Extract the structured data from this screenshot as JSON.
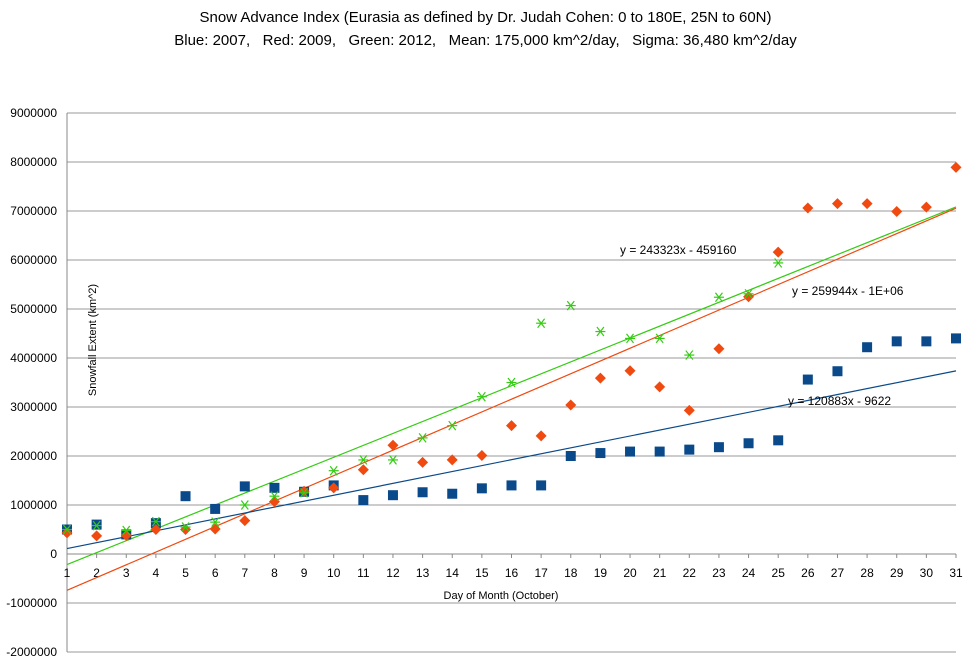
{
  "chart_data": {
    "type": "scatter",
    "title": "Snow Advance Index (Eurasia as defined by Dr. Judah Cohen: 0 to 180E, 25N to 60N)",
    "subtitle": "Blue: 2007,   Red: 2009,   Green: 2012,   Mean: 175,000 km^2/day,   Sigma: 36,480 km^2/day",
    "xlabel": "Day of Month (October)",
    "ylabel": "Snowfall Extent (km^2)",
    "xlim": [
      1,
      31
    ],
    "ylim": [
      -2000000,
      9000000
    ],
    "yticks": [
      "9000000",
      "8000000",
      "7000000",
      "6000000",
      "5000000",
      "4000000",
      "3000000",
      "2000000",
      "1000000",
      "0",
      "-1000000",
      "-2000000"
    ],
    "xticks": [
      "1",
      "2",
      "3",
      "4",
      "5",
      "6",
      "7",
      "8",
      "9",
      "10",
      "11",
      "12",
      "13",
      "14",
      "15",
      "16",
      "17",
      "18",
      "19",
      "20",
      "21",
      "22",
      "23",
      "24",
      "25",
      "26",
      "27",
      "28",
      "29",
      "30",
      "31"
    ],
    "grid": "horizontal",
    "x": [
      1,
      2,
      3,
      4,
      5,
      6,
      7,
      8,
      9,
      10,
      11,
      12,
      13,
      14,
      15,
      16,
      17,
      18,
      19,
      20,
      21,
      22,
      23,
      24,
      25,
      26,
      27,
      28,
      29,
      30,
      31
    ],
    "series": [
      {
        "color": "#0a4a8a",
        "marker": "square",
        "values": [
          500000,
          600000,
          400000,
          630000,
          1180000,
          920000,
          1380000,
          1350000,
          1270000,
          1400000,
          1100000,
          1200000,
          1260000,
          1230000,
          1340000,
          1400000,
          1400000,
          2000000,
          2060000,
          2090000,
          2090000,
          2130000,
          2180000,
          2260000,
          2320000,
          3560000,
          3730000,
          4220000,
          4340000,
          4340000,
          4400000
        ]
      },
      {
        "color": "#f04a10",
        "marker": "diamond",
        "values": [
          430000,
          370000,
          380000,
          500000,
          500000,
          510000,
          680000,
          1070000,
          1280000,
          1350000,
          1720000,
          2220000,
          1870000,
          1920000,
          2010000,
          2620000,
          2410000,
          3040000,
          3590000,
          3740000,
          3410000,
          2930000,
          4190000,
          5250000,
          6160000,
          7060000,
          7150000,
          7150000,
          6990000,
          7080000,
          7890000
        ]
      },
      {
        "color": "#33cc11",
        "marker": "star",
        "values": [
          500000,
          580000,
          480000,
          660000,
          550000,
          650000,
          1000000,
          1180000,
          1250000,
          1700000,
          1920000,
          1920000,
          2370000,
          2620000,
          3210000,
          3500000,
          4710000,
          5070000,
          4540000,
          4400000,
          4400000,
          4060000,
          5240000,
          5310000,
          5940000,
          null,
          null,
          null,
          null,
          null,
          null
        ]
      }
    ],
    "trendlines": [
      {
        "label": "y = 243323x - 459160",
        "color": "#33cc11",
        "slope": 243323,
        "intercept": -459160
      },
      {
        "label": "y = 259944x - 1E+06",
        "color": "#f04a10",
        "slope": 259944,
        "intercept": -1000000
      },
      {
        "label": "y = 120883x - 9622",
        "color": "#0a4a8a",
        "slope": 120883,
        "intercept": -9622
      }
    ]
  }
}
